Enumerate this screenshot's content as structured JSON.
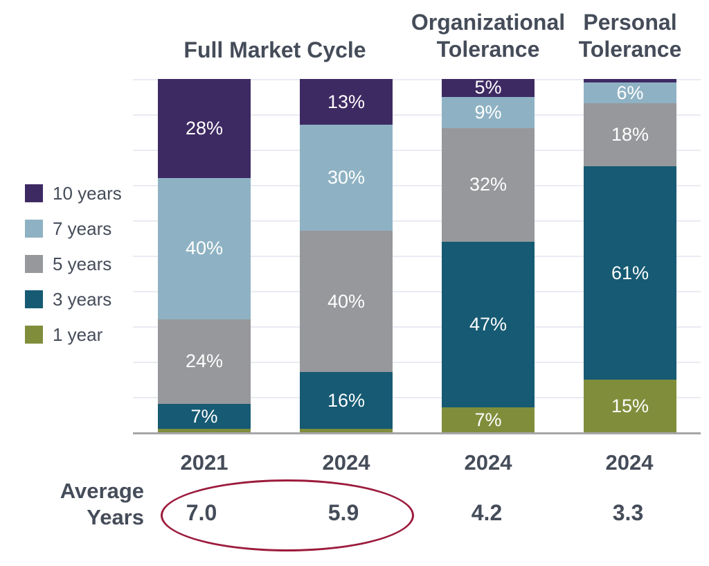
{
  "chart_data": {
    "type": "bar",
    "variant": "100%-stacked-vertical",
    "gridlines": "horizontal, every 10%, light gray, y-range 0-100%, no axis tick labels",
    "legend_position": "left",
    "group_titles": [
      {
        "id": "fmc",
        "title": "Full Market Cycle",
        "spans_bars": [
          "2021",
          "2024"
        ]
      },
      {
        "id": "org",
        "title_line1": "Organizational",
        "title_line2": "Tolerance",
        "spans_bars": [
          "2024"
        ]
      },
      {
        "id": "per",
        "title_line1": "Personal",
        "title_line2": "Tolerance",
        "spans_bars": [
          "2024"
        ]
      }
    ],
    "legend": [
      {
        "name": "10 years",
        "color": "#3E2A63"
      },
      {
        "name": "7 years",
        "color": "#8EB2C3"
      },
      {
        "name": "5 years",
        "color": "#97989B"
      },
      {
        "name": "3 years",
        "color": "#165A73"
      },
      {
        "name": "1 year",
        "color": "#808E3C"
      }
    ],
    "bars": [
      {
        "x_label": "2021",
        "average_years": "7.0",
        "segments": [
          {
            "series": "10 years",
            "value": 28,
            "label": "28%"
          },
          {
            "series": "7 years",
            "value": 40,
            "label": "40%"
          },
          {
            "series": "5 years",
            "value": 24,
            "label": "24%"
          },
          {
            "series": "3 years",
            "value": 7,
            "label": "7%"
          },
          {
            "series": "1 year",
            "value": 1,
            "label": ""
          }
        ]
      },
      {
        "x_label": "2024",
        "average_years": "5.9",
        "segments": [
          {
            "series": "10 years",
            "value": 13,
            "label": "13%"
          },
          {
            "series": "7 years",
            "value": 30,
            "label": "30%"
          },
          {
            "series": "5 years",
            "value": 40,
            "label": "40%"
          },
          {
            "series": "3 years",
            "value": 16,
            "label": "16%"
          },
          {
            "series": "1 year",
            "value": 1,
            "label": ""
          }
        ]
      },
      {
        "x_label": "2024",
        "average_years": "4.2",
        "segments": [
          {
            "series": "10 years",
            "value": 5,
            "label": "5%"
          },
          {
            "series": "7 years",
            "value": 9,
            "label": "9%"
          },
          {
            "series": "5 years",
            "value": 32,
            "label": "32%"
          },
          {
            "series": "3 years",
            "value": 47,
            "label": "47%"
          },
          {
            "series": "1 year",
            "value": 7,
            "label": "7%"
          }
        ]
      },
      {
        "x_label": "2024",
        "average_years": "3.3",
        "segments": [
          {
            "series": "10 years",
            "value": 1,
            "label": ""
          },
          {
            "series": "7 years",
            "value": 6,
            "label": "6%"
          },
          {
            "series": "5 years",
            "value": 18,
            "label": "18%"
          },
          {
            "series": "3 years",
            "value": 61,
            "label": "61%"
          },
          {
            "series": "1 year",
            "value": 15,
            "label": "15%"
          }
        ]
      }
    ],
    "row_header": {
      "line1": "Average",
      "line2": "Years"
    },
    "annotation": {
      "type": "ellipse",
      "around_values": [
        "7.0",
        "5.9"
      ],
      "color": "#9C1B3C"
    }
  },
  "titles": {
    "fmc": "Full Market Cycle",
    "org_line1": "Organizational",
    "org_line2": "Tolerance",
    "per_line1": "Personal",
    "per_line2": "Tolerance"
  }
}
